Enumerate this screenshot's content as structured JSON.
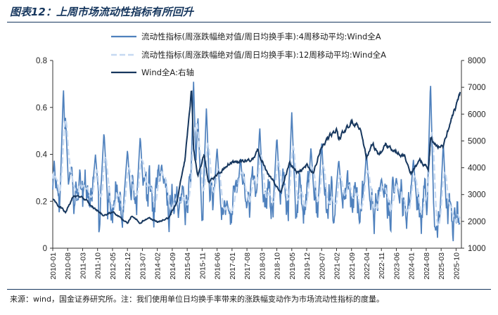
{
  "header": {
    "title": "图表12：上周市场流动性指标有所回升"
  },
  "footer": {
    "source": "来源：wind，国金证券研究所。注：我们使用单位日均换手率带来的涨跌幅变动作为市场流动性指标的度量。"
  },
  "chart_data": {
    "type": "line",
    "series": [
      {
        "name": "流动性指标(周涨跌幅绝对值/周日均换手率):4周移动平均:Wind全A",
        "axis": "left",
        "color": "#4f81bd"
      },
      {
        "name": "流动性指标(周涨跌幅绝对值/周日均换手率):12周移动平均:Wind全A",
        "axis": "left",
        "color": "#c6d9f1"
      },
      {
        "name": "Wind全A:右轴",
        "axis": "right",
        "color": "#17375e"
      }
    ],
    "x_ticks": [
      "2010-01",
      "2010-08",
      "2011-03",
      "2011-10",
      "2012-05",
      "2012-12",
      "2013-07",
      "2014-02",
      "2014-09",
      "2015-04",
      "2015-11",
      "2016-06",
      "2017-01",
      "2017-08",
      "2018-03",
      "2018-10",
      "2019-05",
      "2019-12",
      "2020-07",
      "2021-02",
      "2021-09",
      "2022-04",
      "2022-11",
      "2023-06",
      "2024-01",
      "2024-08",
      "2025-03",
      "2025-10"
    ],
    "y_left": {
      "ticks": [
        "0",
        "0.2",
        "0.4",
        "0.6",
        "0.8"
      ],
      "min": 0,
      "max": 0.8
    },
    "y_right": {
      "ticks": [
        "1000",
        "2000",
        "3000",
        "4000",
        "5000",
        "6000",
        "7000",
        "8000"
      ],
      "min": 1000,
      "max": 8000
    },
    "wind_all_a_anchors": [
      [
        "2010-01",
        2850
      ],
      [
        "2010-04",
        2550
      ],
      [
        "2010-07",
        2350
      ],
      [
        "2010-11",
        3000
      ],
      [
        "2011-03",
        2900
      ],
      [
        "2011-09",
        2450
      ],
      [
        "2012-01",
        2200
      ],
      [
        "2012-05",
        2350
      ],
      [
        "2012-12",
        1950
      ],
      [
        "2013-02",
        2200
      ],
      [
        "2013-06",
        1950
      ],
      [
        "2013-10",
        2150
      ],
      [
        "2014-02",
        2000
      ],
      [
        "2014-07",
        2100
      ],
      [
        "2014-11",
        2700
      ],
      [
        "2015-03",
        4300
      ],
      [
        "2015-06",
        6950
      ],
      [
        "2015-07",
        4700
      ],
      [
        "2015-09",
        3650
      ],
      [
        "2015-12",
        4500
      ],
      [
        "2016-02",
        3450
      ],
      [
        "2016-11",
        4100
      ],
      [
        "2017-03",
        4250
      ],
      [
        "2017-08",
        4250
      ],
      [
        "2017-12",
        4450
      ],
      [
        "2018-01",
        4650
      ],
      [
        "2018-06",
        3750
      ],
      [
        "2018-12",
        3100
      ],
      [
        "2019-04",
        4150
      ],
      [
        "2019-08",
        3800
      ],
      [
        "2019-12",
        4100
      ],
      [
        "2020-03",
        3800
      ],
      [
        "2020-07",
        4850
      ],
      [
        "2021-02",
        5450
      ],
      [
        "2021-03",
        5100
      ],
      [
        "2021-09",
        5700
      ],
      [
        "2022-01",
        5500
      ],
      [
        "2022-04",
        4400
      ],
      [
        "2022-07",
        4900
      ],
      [
        "2022-10",
        4450
      ],
      [
        "2023-01",
        4850
      ],
      [
        "2023-06",
        4650
      ],
      [
        "2023-10",
        4400
      ],
      [
        "2024-01",
        3800
      ],
      [
        "2024-05",
        4300
      ],
      [
        "2024-09",
        3950
      ],
      [
        "2024-10",
        5150
      ],
      [
        "2025-01",
        4800
      ],
      [
        "2025-04",
        4800
      ],
      [
        "2025-08",
        5900
      ],
      [
        "2025-10",
        6300
      ],
      [
        "2025-12",
        6800
      ]
    ],
    "liquidity_4w_peaks": [
      [
        "2010-06",
        0.69
      ],
      [
        "2010-07",
        0.56
      ],
      [
        "2011-09",
        0.4
      ],
      [
        "2012-01",
        0.5
      ],
      [
        "2012-12",
        0.42
      ],
      [
        "2013-06",
        0.48
      ],
      [
        "2014-04",
        0.36
      ],
      [
        "2015-07",
        0.71
      ],
      [
        "2015-09",
        0.57
      ],
      [
        "2016-01",
        0.6
      ],
      [
        "2016-06",
        0.43
      ],
      [
        "2017-05",
        0.39
      ],
      [
        "2018-02",
        0.52
      ],
      [
        "2018-10",
        0.48
      ],
      [
        "2019-05",
        0.58
      ],
      [
        "2020-02",
        0.43
      ],
      [
        "2020-07",
        0.45
      ],
      [
        "2021-03",
        0.38
      ],
      [
        "2022-04",
        0.41
      ],
      [
        "2022-11",
        0.3
      ],
      [
        "2023-06",
        0.3
      ],
      [
        "2024-02",
        0.38
      ],
      [
        "2024-10",
        0.72
      ],
      [
        "2025-04",
        0.45
      ],
      [
        "2025-11",
        0.1
      ]
    ]
  }
}
